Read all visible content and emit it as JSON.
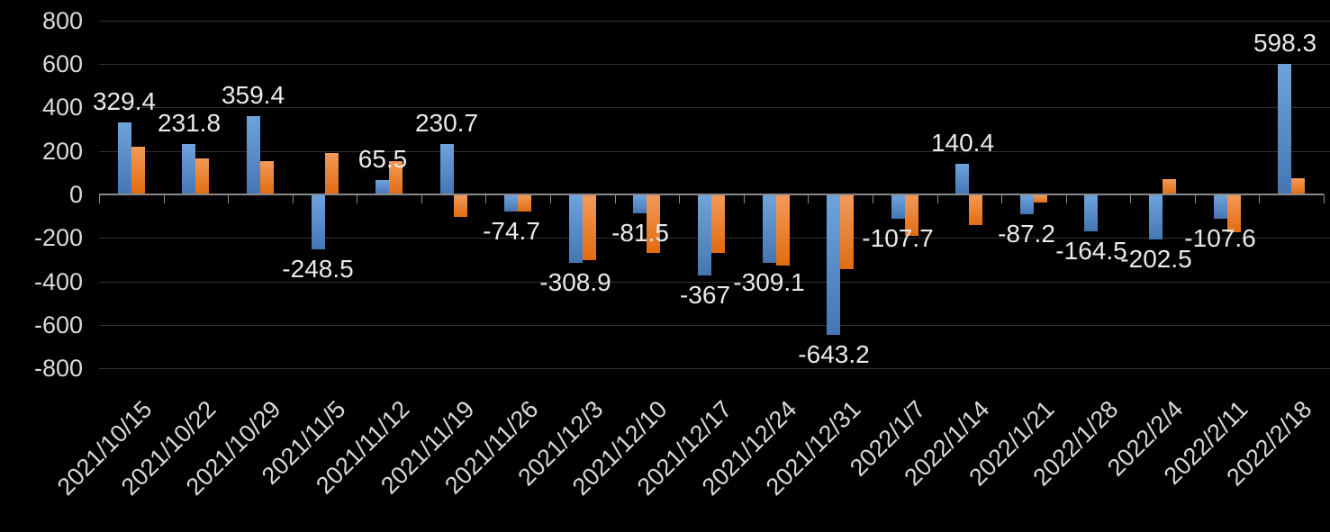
{
  "chart_data": {
    "type": "bar",
    "title": "",
    "legend": "none",
    "grid": true,
    "background_color": "#000000",
    "categories": [
      "2021/10/15",
      "2021/10/22",
      "2021/10/29",
      "2021/11/5",
      "2021/11/12",
      "2021/11/19",
      "2021/11/26",
      "2021/12/3",
      "2021/12/10",
      "2021/12/17",
      "2021/12/24",
      "2021/12/31",
      "2022/1/7",
      "2022/1/14",
      "2022/1/21",
      "2022/1/28",
      "2022/2/4",
      "2022/2/11",
      "2022/2/18"
    ],
    "series": [
      {
        "name": "blue-series",
        "color_top": "#6FA3DC",
        "color_bottom": "#4576B4",
        "values": [
          329.4,
          231.8,
          359.4,
          -248.5,
          65.5,
          230.7,
          -74.7,
          -308.9,
          -81.5,
          -367,
          -309.1,
          -643.2,
          -107.7,
          140.4,
          -87.2,
          -164.5,
          -202.5,
          -107.6,
          598.3
        ],
        "data_labels": [
          "329.4",
          "231.8",
          "359.4",
          "-248.5",
          "65.5",
          "230.7",
          "-74.7",
          "-308.9",
          "-81.5",
          "-367",
          "-309.1",
          "-643.2",
          "-107.7",
          "140.4",
          "-87.2",
          "-164.5",
          "-202.5",
          "-107.6",
          "598.3"
        ]
      },
      {
        "name": "orange-series",
        "color_top": "#F39A59",
        "color_bottom": "#E16C11",
        "values": [
          218,
          165,
          155,
          190,
          152,
          -100,
          -73,
          -300,
          -263,
          -265,
          -324,
          -340,
          -187,
          -135,
          -35,
          0,
          72,
          -170,
          75
        ],
        "data_labels": null
      }
    ],
    "y_axis": {
      "min": -800,
      "max": 800,
      "step": 200,
      "tick_labels": [
        "800",
        "600",
        "400",
        "200",
        "0",
        "-200",
        "-400",
        "-600",
        "-800"
      ]
    },
    "x_axis": {
      "tick_label_rotation_deg": 45
    },
    "colors": {
      "axis_line": "#8a8a8a",
      "gridline": "#313131",
      "axis_text": "#d9d9d9",
      "data_label_text": "#eaeaea"
    }
  }
}
